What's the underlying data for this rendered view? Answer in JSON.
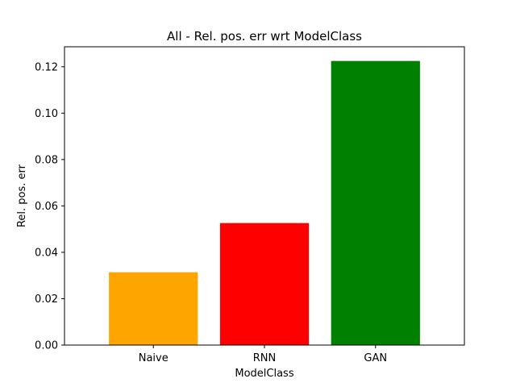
{
  "chart_data": {
    "type": "bar",
    "title": "All - Rel. pos. err wrt ModelClass",
    "xlabel": "ModelClass",
    "ylabel": "Rel. pos. err",
    "categories": [
      "Naive",
      "RNN",
      "GAN"
    ],
    "values": [
      0.0314,
      0.0526,
      0.1225
    ],
    "colors": [
      "#ffa500",
      "#ff0000",
      "#008000"
    ],
    "ylim": [
      0,
      0.12862
    ],
    "yticks": [
      0.0,
      0.02,
      0.04,
      0.06,
      0.08,
      0.1,
      0.12
    ],
    "ytick_labels": [
      "0.00",
      "0.02",
      "0.04",
      "0.06",
      "0.08",
      "0.10",
      "0.12"
    ],
    "grid": false,
    "legend": "none"
  }
}
